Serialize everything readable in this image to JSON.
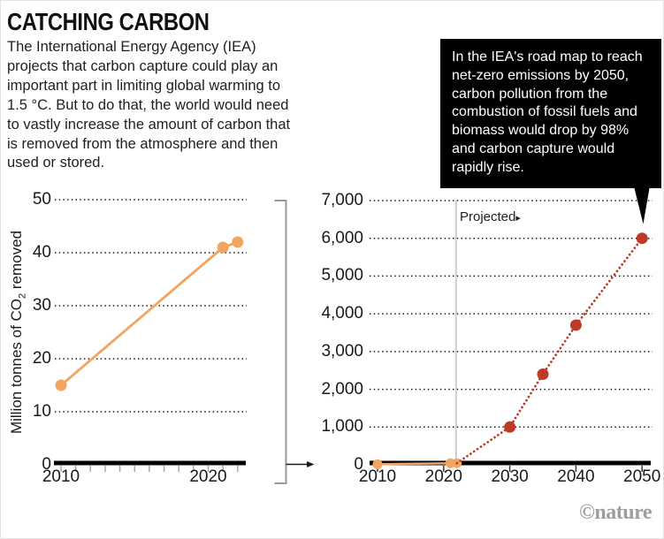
{
  "header": {
    "title": "CATCHING CARBON",
    "intro": "The International Energy Agency (IEA) projects that carbon capture could play an important part in limiting global warming to 1.5 °C. But to do that, the world would need to vastly increase the amount of carbon that is removed from the atmosphere and then used or stored."
  },
  "callout": {
    "text": "In the IEA's road map to reach net-zero emissions by 2050, carbon pollution from the combustion of fossil fuels and biomass would drop by 98% and carbon capture would rapidly rise."
  },
  "colors": {
    "historical_orange": "#F3A45E",
    "projected_red": "#BE3A26",
    "annotation_gray_blue": "#8C99A8",
    "projected_divider": "#C9CED3",
    "grid_dot": "#1A1A1A",
    "axis_black": "#000000",
    "minor_tick_gray": "#A8A8A8",
    "decade_tick_dark": "#3A3A3A",
    "bracket_gray": "#999999",
    "callout_bg": "#000000",
    "callout_fg": "#FFFFFF",
    "credit_gray": "#9E9E9E"
  },
  "chart_data": [
    {
      "id": "co2-removed-historical",
      "type": "line",
      "title": "",
      "xlabel": "",
      "ylabel": "Million tonnes of CO2 removed",
      "ylabel_parts": {
        "pre": "Million tonnes of CO",
        "sub": "2",
        "post": " removed"
      },
      "x": [
        2010,
        2021,
        2022
      ],
      "values": [
        15,
        41,
        42
      ],
      "xlim": [
        2009.5,
        2022.8
      ],
      "ylim": [
        0,
        50
      ],
      "ytick_values": [
        0,
        10,
        20,
        30,
        40,
        50
      ],
      "ytick_labels": [
        "0",
        "10",
        "20",
        "30",
        "40",
        "50"
      ],
      "xtick_values": [
        2010,
        2020
      ],
      "xtick_labels": [
        "2010",
        "2020"
      ],
      "minor_xtick_years": [
        2010,
        2011,
        2012,
        2013,
        2014,
        2015,
        2016,
        2017,
        2018,
        2019,
        2020,
        2021,
        2022
      ],
      "grid": "dotted horizontal"
    },
    {
      "id": "co2-removed-iea-roadmap",
      "type": "line",
      "title": "",
      "xlabel": "",
      "ylabel": "",
      "annotation": {
        "text": "Projected",
        "marker": "▸",
        "at_year": 2022
      },
      "series": [
        {
          "name": "historical",
          "style": "solid",
          "x": [
            2010,
            2021,
            2022
          ],
          "values": [
            15,
            41,
            42
          ]
        },
        {
          "name": "projected",
          "style": "dotted",
          "x": [
            2022,
            2030,
            2035,
            2040,
            2050
          ],
          "values": [
            42,
            1000,
            2400,
            3700,
            6000
          ],
          "marker_x": [
            2030,
            2035,
            2040,
            2050
          ]
        }
      ],
      "xlim": [
        2008.8,
        2051.5
      ],
      "ylim": [
        0,
        7000
      ],
      "ytick_values": [
        0,
        1000,
        2000,
        3000,
        4000,
        5000,
        6000,
        7000
      ],
      "ytick_labels": [
        "0",
        "1,000",
        "2,000",
        "3,000",
        "4,000",
        "5,000",
        "6,000",
        "7,000"
      ],
      "xtick_values": [
        2010,
        2020,
        2030,
        2040,
        2050
      ],
      "xtick_labels": [
        "2010",
        "2020",
        "2030",
        "2040",
        "2050"
      ],
      "grid": "dotted horizontal",
      "legend": "none"
    }
  ],
  "footer": {
    "credit": "©nature"
  }
}
